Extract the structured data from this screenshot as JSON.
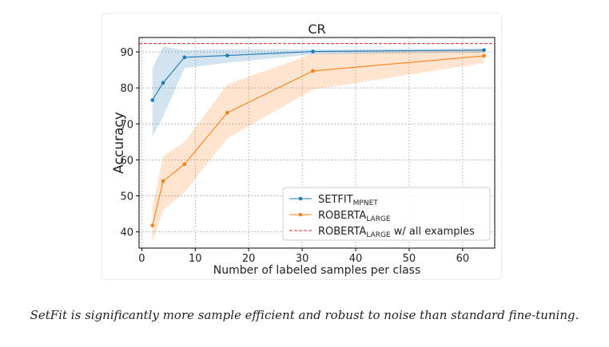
{
  "chart_data": {
    "type": "line",
    "title": "CR",
    "xlabel": "Number of labeled samples per class",
    "ylabel": "Accuracy",
    "xlim": [
      -0.5,
      66
    ],
    "ylim": [
      35.5,
      94
    ],
    "xticks": [
      0,
      10,
      20,
      30,
      40,
      50,
      60
    ],
    "yticks": [
      40,
      50,
      60,
      70,
      80,
      90
    ],
    "grid": true,
    "legend_position": "lower-right",
    "series": [
      {
        "name": "SETFIT",
        "name_sub": "MPNET",
        "color": "#1f77b4",
        "x": [
          2,
          4,
          8,
          16,
          32,
          64
        ],
        "y": [
          76.6,
          81.4,
          88.5,
          89.0,
          90.1,
          90.5
        ],
        "lower": [
          66.5,
          72.0,
          85.5,
          87.0,
          89.3,
          89.8
        ],
        "upper": [
          85.5,
          91.5,
          90.5,
          90.8,
          90.7,
          91.0
        ]
      },
      {
        "name": "ROBERTA",
        "name_sub": "LARGE",
        "color": "#ff7f0e",
        "x": [
          2,
          4,
          8,
          16,
          32,
          64
        ],
        "y": [
          41.8,
          54.1,
          58.8,
          73.1,
          84.7,
          88.9
        ],
        "lower": [
          37.0,
          46.0,
          51.0,
          66.0,
          79.5,
          86.9
        ],
        "upper": [
          47.0,
          61.0,
          65.0,
          81.0,
          89.5,
          90.5
        ]
      }
    ],
    "reference_line": {
      "name": "ROBERTA",
      "name_sub": "LARGE",
      "name_suffix": " w/ all examples",
      "y": 92.3,
      "color": "#d62728"
    }
  },
  "caption": "SetFit is significantly more sample efficient and robust to noise than standard fine-tuning."
}
